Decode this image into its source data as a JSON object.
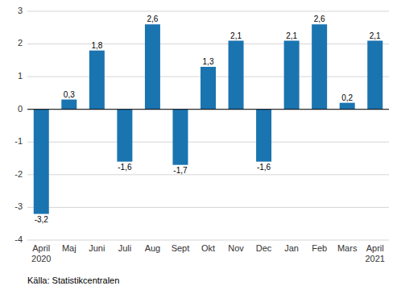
{
  "chart_data": {
    "type": "bar",
    "categories": [
      "April\n2020",
      "Maj",
      "Juni",
      "Juli",
      "Aug",
      "Sept",
      "Okt",
      "Nov",
      "Dec",
      "Jan",
      "Feb",
      "Mars",
      "April\n2021"
    ],
    "values": [
      -3.2,
      0.3,
      1.8,
      -1.6,
      2.6,
      -1.7,
      1.3,
      2.1,
      -1.6,
      2.1,
      2.6,
      0.2,
      2.1
    ],
    "value_labels": [
      "-3,2",
      "0,3",
      "1,8",
      "-1,6",
      "2,6",
      "-1,7",
      "1,3",
      "2,1",
      "-1,6",
      "2,1",
      "2,6",
      "0,2",
      "2,1"
    ],
    "color": "#1a74b0",
    "ylim": [
      -4,
      3
    ],
    "yticks": [
      -4,
      -3,
      -2,
      -1,
      0,
      1,
      2,
      3
    ],
    "grid": true,
    "data_labels": true,
    "annotations": [
      "Källa: Statistikcentralen"
    ]
  }
}
